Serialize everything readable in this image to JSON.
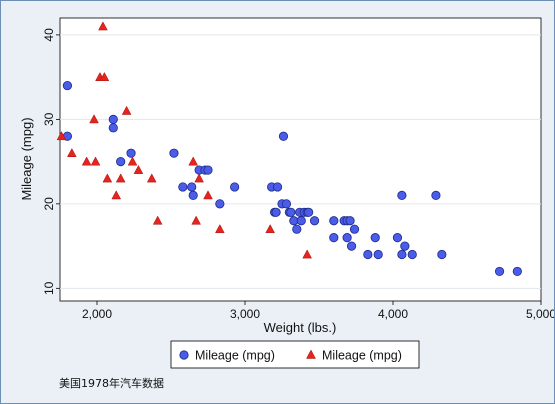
{
  "chart_data": {
    "type": "scatter",
    "xlabel": "Weight (lbs.)",
    "ylabel": "Mileage (mpg)",
    "xlim": [
      1750,
      5000
    ],
    "ylim": [
      8.5,
      42
    ],
    "x_ticks": [
      2000,
      3000,
      4000,
      5000
    ],
    "x_tick_labels": [
      "2,000",
      "3,000",
      "4,000",
      "5,000"
    ],
    "y_ticks": [
      10,
      20,
      30,
      40
    ],
    "y_tick_labels": [
      "10",
      "20",
      "30",
      "40"
    ],
    "grid": true,
    "legend_position": "bottom",
    "series": [
      {
        "name": "Mileage (mpg)",
        "marker": "circle",
        "color": "#4b5ce8",
        "points": [
          [
            1800,
            34
          ],
          [
            1800,
            28
          ],
          [
            2110,
            30
          ],
          [
            2110,
            29
          ],
          [
            2160,
            25
          ],
          [
            2230,
            26
          ],
          [
            2520,
            26
          ],
          [
            2580,
            22
          ],
          [
            2640,
            22
          ],
          [
            2650,
            21
          ],
          [
            2690,
            24
          ],
          [
            2730,
            24
          ],
          [
            2750,
            24
          ],
          [
            2830,
            20
          ],
          [
            2930,
            22
          ],
          [
            3180,
            22
          ],
          [
            3200,
            19
          ],
          [
            3210,
            19
          ],
          [
            3220,
            22
          ],
          [
            3250,
            20
          ],
          [
            3260,
            28
          ],
          [
            3280,
            20
          ],
          [
            3300,
            19
          ],
          [
            3310,
            19
          ],
          [
            3330,
            18
          ],
          [
            3350,
            17
          ],
          [
            3370,
            19
          ],
          [
            3380,
            18
          ],
          [
            3400,
            19
          ],
          [
            3420,
            19
          ],
          [
            3430,
            19
          ],
          [
            3470,
            18
          ],
          [
            3600,
            18
          ],
          [
            3600,
            16
          ],
          [
            3670,
            18
          ],
          [
            3690,
            18
          ],
          [
            3690,
            16
          ],
          [
            3710,
            18
          ],
          [
            3720,
            15
          ],
          [
            3740,
            17
          ],
          [
            3830,
            14
          ],
          [
            3880,
            16
          ],
          [
            3900,
            14
          ],
          [
            4030,
            16
          ],
          [
            4060,
            14
          ],
          [
            4060,
            21
          ],
          [
            4080,
            15
          ],
          [
            4130,
            14
          ],
          [
            4290,
            21
          ],
          [
            4330,
            14
          ],
          [
            4720,
            12
          ],
          [
            4840,
            12
          ]
        ]
      },
      {
        "name": "Mileage (mpg)",
        "marker": "triangle",
        "color": "#e8231d",
        "points": [
          [
            1760,
            28
          ],
          [
            1830,
            26
          ],
          [
            1930,
            25
          ],
          [
            1980,
            30
          ],
          [
            1990,
            25
          ],
          [
            2020,
            35
          ],
          [
            2040,
            41
          ],
          [
            2050,
            35
          ],
          [
            2070,
            23
          ],
          [
            2130,
            21
          ],
          [
            2160,
            23
          ],
          [
            2200,
            31
          ],
          [
            2240,
            25
          ],
          [
            2280,
            24
          ],
          [
            2370,
            23
          ],
          [
            2410,
            18
          ],
          [
            2650,
            25
          ],
          [
            2670,
            18
          ],
          [
            2690,
            23
          ],
          [
            2750,
            21
          ],
          [
            2830,
            17
          ],
          [
            3170,
            17
          ],
          [
            3420,
            14
          ]
        ]
      }
    ]
  },
  "caption": "美国1978年汽车数据"
}
